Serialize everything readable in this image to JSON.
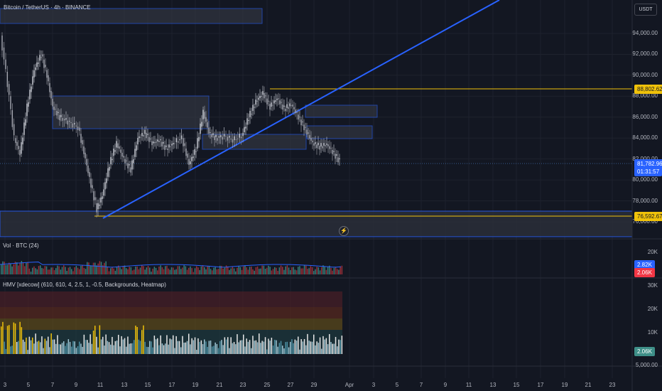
{
  "header": {
    "symbol_title": "Bitcoin / TetherUS · 4h · BINANCE",
    "currency_button": "USDT"
  },
  "price_axis": {
    "labels": [
      "94,000.00",
      "92,000.00",
      "90,000.00",
      "88,000.00",
      "86,000.00",
      "84,000.00",
      "82,000.00",
      "80,000.00",
      "78,000.00",
      "76,000.00"
    ],
    "values": [
      94000,
      92000,
      90000,
      88000,
      86000,
      84000,
      82000,
      80000,
      78000,
      76000
    ],
    "resistance_label": "88,802.62",
    "resistance_value": 88802.62,
    "current_price_label": "81,782.96",
    "countdown_label": "01:31:57",
    "support_label": "76,592.67",
    "support_value": 76592.67
  },
  "volume_pane": {
    "title": "Vol · BTC (24)",
    "axis_labels": [
      "20K"
    ],
    "badge_sma": "2.82K",
    "badge_volume": "2.06K"
  },
  "hmv_pane": {
    "title": "HMV [xdecow] (610, 610, 4, 2.5, 1, -0.5, Backgrounds, Heatmap)",
    "axis_labels": [
      "30K",
      "20K",
      "10K",
      "5,000.00"
    ],
    "badge_value": "2.06K"
  },
  "time_axis": {
    "labels": [
      "3",
      "5",
      "7",
      "9",
      "11",
      "13",
      "15",
      "17",
      "19",
      "21",
      "23",
      "25",
      "27",
      "29",
      "Apr",
      "3",
      "5",
      "7",
      "9",
      "11",
      "13",
      "15",
      "17",
      "19",
      "21",
      "23"
    ]
  },
  "colors": {
    "background": "#131722",
    "up": "#d1d4dc",
    "down": "#b2b5be",
    "zone_border": "#2962ff",
    "trendline": "#2962ff",
    "resistance_line": "#f0c20a",
    "support_line": "#2962ff",
    "current_price": "#5b9cf6",
    "vol_red": "#f23645",
    "vol_teal": "#3e8f88"
  },
  "icons": {
    "lightning": "lightning-icon"
  }
}
